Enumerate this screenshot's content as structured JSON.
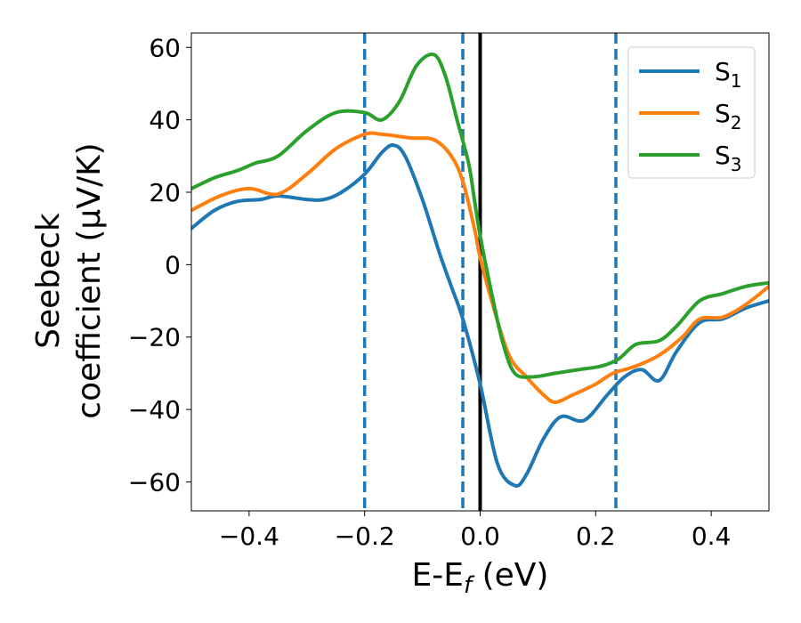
{
  "chart_data": {
    "type": "line",
    "title": "",
    "xlabel": {
      "main": "E-E",
      "sub": "f",
      "suffix": " (eV)"
    },
    "ylabel": {
      "line1": "Seebeck",
      "line2": "coefficient  (μV/K)"
    },
    "xlim": [
      -0.5,
      0.5
    ],
    "ylim": [
      -68,
      64
    ],
    "xticks": [
      -0.4,
      -0.2,
      0.0,
      0.2,
      0.4
    ],
    "xtick_labels": [
      "−0.4",
      "−0.2",
      "0.0",
      "0.2",
      "0.4"
    ],
    "yticks": [
      -60,
      -40,
      -20,
      0,
      20,
      40,
      60
    ],
    "ytick_labels": [
      "−60",
      "−40",
      "−20",
      "0",
      "20",
      "40",
      "60"
    ],
    "grid": false,
    "legend_position": "top-right",
    "vlines": [
      {
        "x": -0.2,
        "style": "dashed",
        "color": "#1f77b4"
      },
      {
        "x": -0.03,
        "style": "dashed",
        "color": "#1f77b4"
      },
      {
        "x": 0.0,
        "style": "solid",
        "color": "#000000"
      },
      {
        "x": 0.235,
        "style": "dashed",
        "color": "#1f77b4"
      }
    ],
    "series": [
      {
        "name": "S",
        "sub": "1",
        "color": "#1f77b4",
        "x": [
          -0.5,
          -0.46,
          -0.42,
          -0.38,
          -0.35,
          -0.3,
          -0.27,
          -0.24,
          -0.2,
          -0.17,
          -0.15,
          -0.13,
          -0.1,
          -0.07,
          -0.05,
          -0.03,
          0.0,
          0.03,
          0.06,
          0.08,
          0.11,
          0.14,
          0.18,
          0.22,
          0.25,
          0.28,
          0.31,
          0.34,
          0.38,
          0.42,
          0.46,
          0.5
        ],
        "y": [
          10,
          15,
          17.5,
          18,
          19,
          18,
          18,
          20,
          25,
          31,
          33,
          30,
          18,
          3,
          -6,
          -15,
          -33,
          -55,
          -61,
          -58,
          -48,
          -42,
          -43,
          -36,
          -31,
          -29,
          -32,
          -24,
          -16,
          -15,
          -12,
          -10
        ]
      },
      {
        "name": "S",
        "sub": "2",
        "color": "#ff7f0e",
        "x": [
          -0.5,
          -0.45,
          -0.4,
          -0.35,
          -0.3,
          -0.25,
          -0.2,
          -0.17,
          -0.12,
          -0.08,
          -0.05,
          -0.03,
          -0.01,
          0.0,
          0.02,
          0.05,
          0.08,
          0.11,
          0.13,
          0.16,
          0.2,
          0.23,
          0.27,
          0.31,
          0.35,
          0.38,
          0.42,
          0.46,
          0.5
        ],
        "y": [
          15,
          19,
          21,
          19.5,
          25,
          32,
          36,
          36,
          35,
          34.5,
          30,
          23,
          10,
          2,
          -10,
          -25,
          -31,
          -36,
          -38,
          -36,
          -33,
          -30,
          -28,
          -25,
          -20,
          -15,
          -14.5,
          -11,
          -6
        ]
      },
      {
        "name": "S",
        "sub": "3",
        "color": "#2ca02c",
        "x": [
          -0.5,
          -0.46,
          -0.42,
          -0.39,
          -0.35,
          -0.3,
          -0.25,
          -0.2,
          -0.17,
          -0.14,
          -0.11,
          -0.08,
          -0.06,
          -0.04,
          -0.02,
          -0.01,
          0.0,
          0.02,
          0.04,
          0.06,
          0.09,
          0.13,
          0.17,
          0.21,
          0.24,
          0.27,
          0.31,
          0.34,
          0.38,
          0.42,
          0.46,
          0.5
        ],
        "y": [
          21,
          24,
          26,
          28,
          30,
          37,
          42,
          42,
          40,
          45,
          55,
          58,
          52,
          40,
          28,
          18,
          8,
          -8,
          -22,
          -30,
          -31,
          -30,
          -29,
          -28,
          -26,
          -22,
          -21,
          -17,
          -10,
          -8,
          -6,
          -5
        ]
      }
    ]
  }
}
